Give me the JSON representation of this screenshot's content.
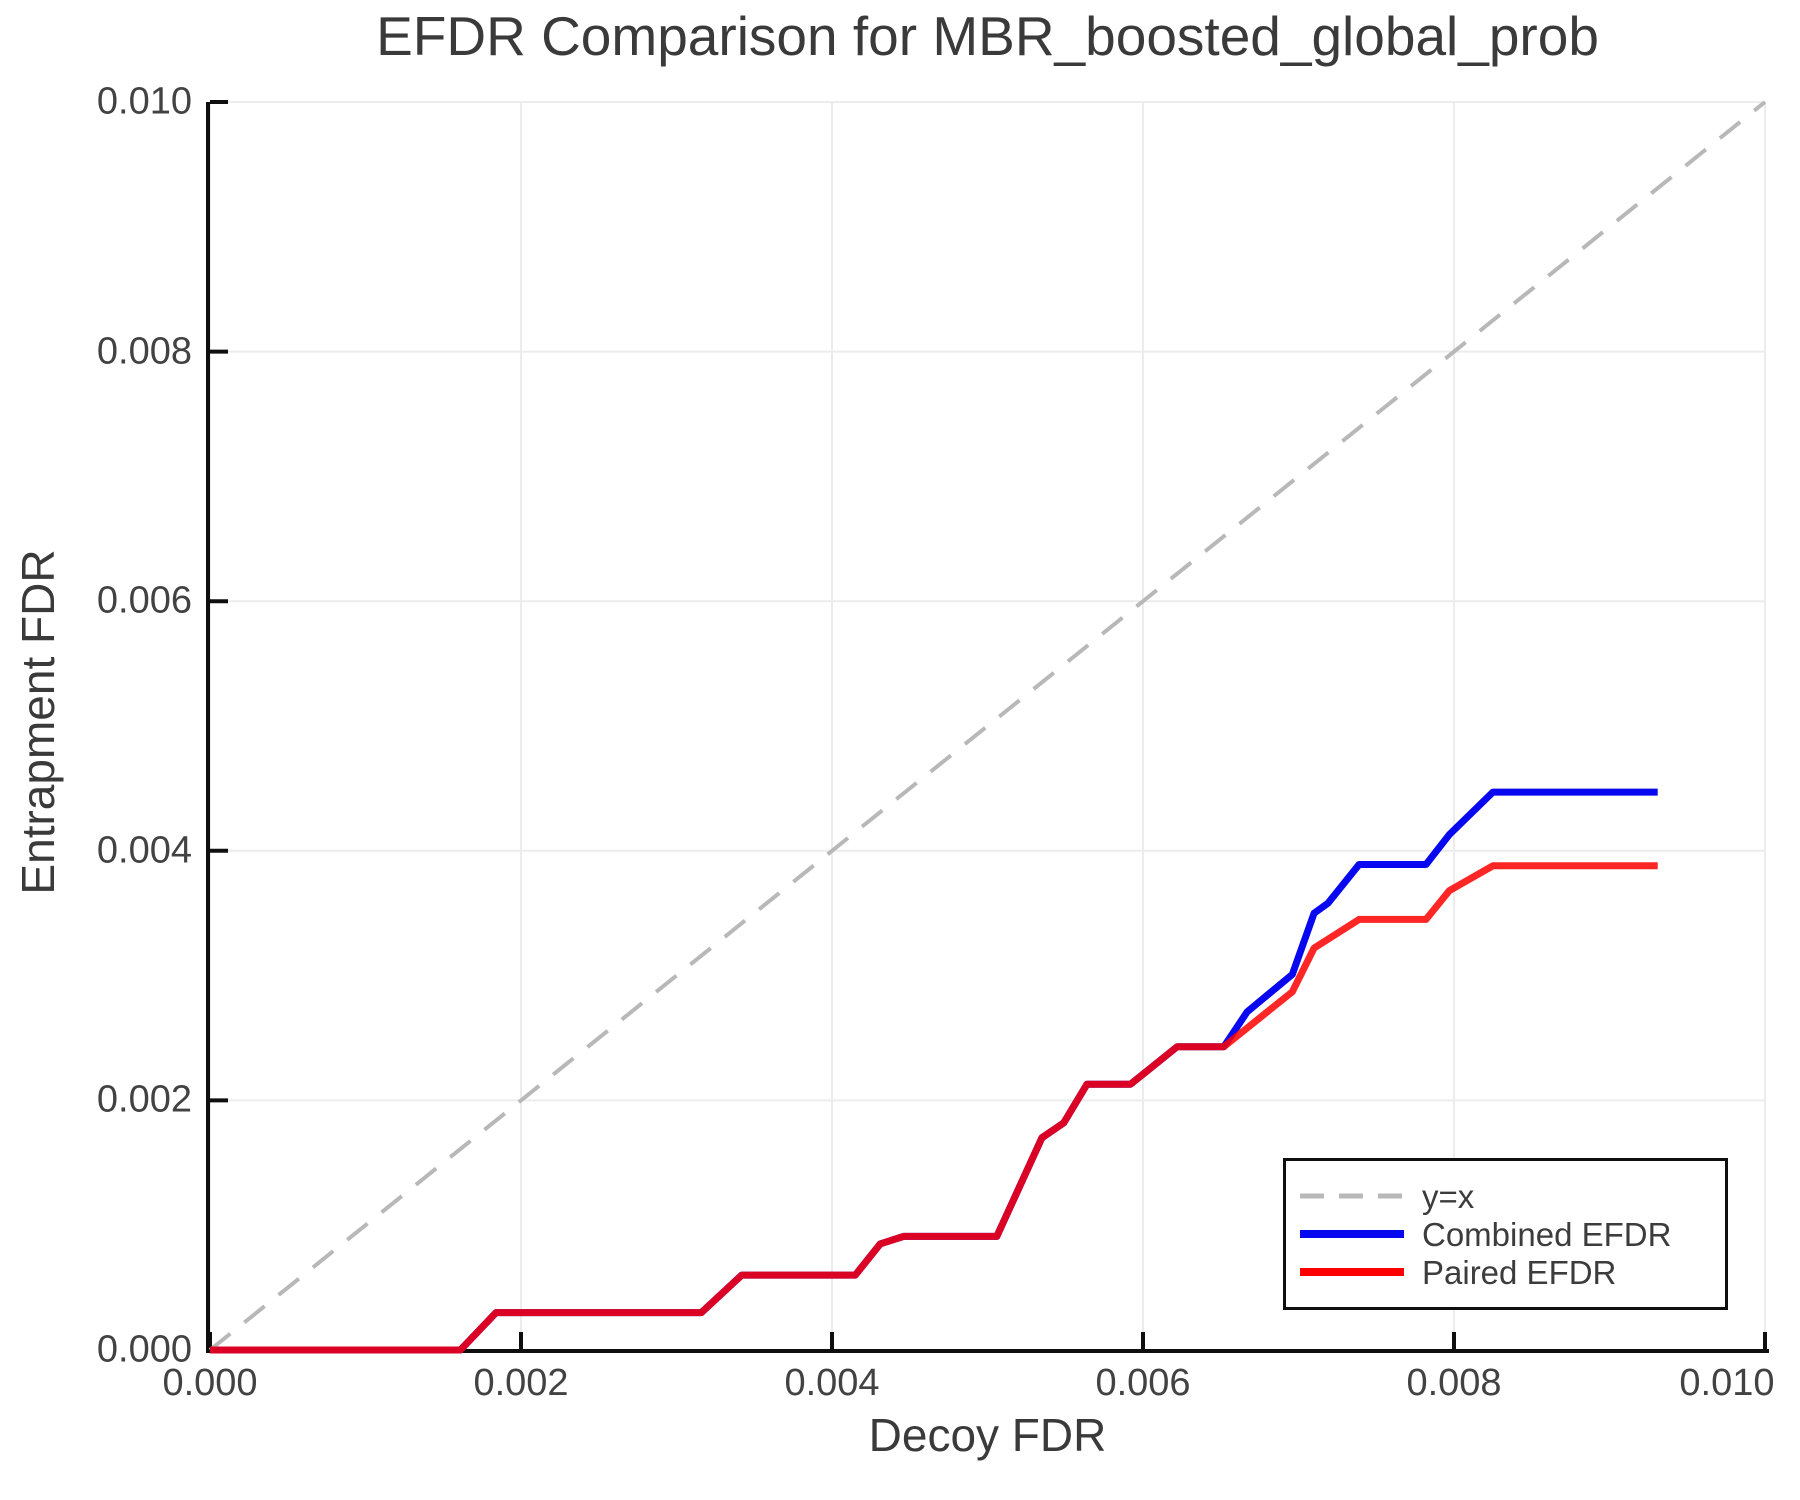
{
  "figure": {
    "title": "EFDR Comparison for MBR_boosted_global_prob",
    "colors": {
      "title_text": "#3a3a3a",
      "axis_label_text": "#3a3a3a",
      "tick_text": "#424242",
      "grid": "#ececec",
      "spine": "#0f0f0f",
      "identity_line": "#b8b8b8",
      "combined_line": "#0808f0",
      "paired_line": "#ff0000",
      "legend_border": "#0f0f0f",
      "legend_bg": "#ffffff"
    }
  },
  "chart_data": {
    "type": "line",
    "title": "EFDR Comparison for MBR_boosted_global_prob",
    "xlabel": "Decoy FDR",
    "ylabel": "Entrapment FDR",
    "xlim": [
      0.0,
      0.01
    ],
    "ylim": [
      0.0,
      0.01
    ],
    "grid": true,
    "legend_position": "lower right",
    "xticks": {
      "values": [
        0.0,
        0.002,
        0.004,
        0.006,
        0.008,
        0.01
      ],
      "labels": [
        "0.000",
        "0.002",
        "0.004",
        "0.006",
        "0.008",
        "0.010"
      ]
    },
    "yticks": {
      "values": [
        0.0,
        0.002,
        0.004,
        0.006,
        0.008,
        0.01
      ],
      "labels": [
        "0.000",
        "0.002",
        "0.004",
        "0.006",
        "0.008",
        "0.010"
      ]
    },
    "series": [
      {
        "name": "y=x",
        "style": "dashed",
        "color": "#b8b8b8",
        "width": 4,
        "opacity": 1,
        "x": [
          0.0,
          0.01
        ],
        "y": [
          0.0,
          0.01
        ]
      },
      {
        "name": "Combined EFDR",
        "style": "solid",
        "color": "#0808f0",
        "width": 7,
        "opacity": 1,
        "x": [
          0.0,
          0.00161,
          0.00184,
          0.00316,
          0.00342,
          0.00415,
          0.00431,
          0.00446,
          0.00506,
          0.00535,
          0.00549,
          0.00564,
          0.00592,
          0.00622,
          0.00652,
          0.00667,
          0.00696,
          0.0071,
          0.00719,
          0.00739,
          0.00782,
          0.00797,
          0.00825,
          0.00931
        ],
        "y": [
          0.0,
          0.0,
          0.0003,
          0.0003,
          0.0006,
          0.0006,
          0.00085,
          0.00091,
          0.00091,
          0.0017,
          0.00182,
          0.00213,
          0.00213,
          0.00243,
          0.00243,
          0.00271,
          0.00301,
          0.0035,
          0.00358,
          0.00389,
          0.00389,
          0.00413,
          0.00447,
          0.00447
        ]
      },
      {
        "name": "Paired EFDR",
        "style": "solid",
        "color": "#ff0000",
        "width": 7,
        "opacity": 0.85,
        "x": [
          0.0,
          0.00161,
          0.00184,
          0.00316,
          0.00342,
          0.00415,
          0.00431,
          0.00446,
          0.00506,
          0.00535,
          0.00549,
          0.00564,
          0.00592,
          0.00622,
          0.00652,
          0.00696,
          0.0071,
          0.00739,
          0.00782,
          0.00797,
          0.00825,
          0.00931
        ],
        "y": [
          0.0,
          0.0,
          0.0003,
          0.0003,
          0.0006,
          0.0006,
          0.00085,
          0.00091,
          0.00091,
          0.0017,
          0.00182,
          0.00213,
          0.00213,
          0.00243,
          0.00243,
          0.00287,
          0.00322,
          0.00345,
          0.00345,
          0.00368,
          0.00388,
          0.00388
        ]
      }
    ]
  }
}
